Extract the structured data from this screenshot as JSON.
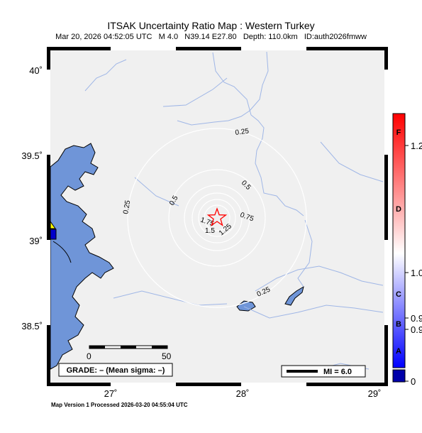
{
  "map": {
    "title": "ITSAK Uncertainty Ratio Map : Western Turkey",
    "subtitle": "Mar 20, 2026 04:52:05 UTC   M 4.0   N39.14 E27.80   Depth: 110.0km   ID:auth2026fmww",
    "lat_labels": [
      "40˚",
      "39.5˚",
      "39˚",
      "38.5˚"
    ],
    "lon_labels": [
      "27˚",
      "28˚",
      "29˚"
    ],
    "contour_labels": [
      "0.25",
      "0.25",
      "0.25",
      "0.25",
      "0.5",
      "0.5",
      "0.75",
      "1.25",
      "1.5",
      "1.75"
    ],
    "scale_bar": {
      "start": "0",
      "end": "50"
    },
    "grade_box": "GRADE: – (Mean sigma: –)",
    "mi_legend": "MI = 6.0",
    "footer": "Map Version 1 Processed 2026-03-20 04:55:04 UTC",
    "epicenter_marker": "star-icon",
    "colors": {
      "water": "#6f95d8",
      "land": "#f0f0f0",
      "rivers": "#9fb6e6",
      "contours": "#ffffff",
      "epicenter": "#ff0000",
      "station_yellow": "#ffff00",
      "station_blue": "#0000cc"
    }
  },
  "colorbar": {
    "letters": [
      "F",
      "D",
      "C",
      "B",
      "A"
    ],
    "values": [
      "1.2",
      "1.0",
      "0.9",
      "0.9",
      "0"
    ],
    "colors": {
      "top": "#ff0000",
      "middle": "#ffffff",
      "bottom": "#0000ff",
      "below": "#0000aa"
    }
  }
}
